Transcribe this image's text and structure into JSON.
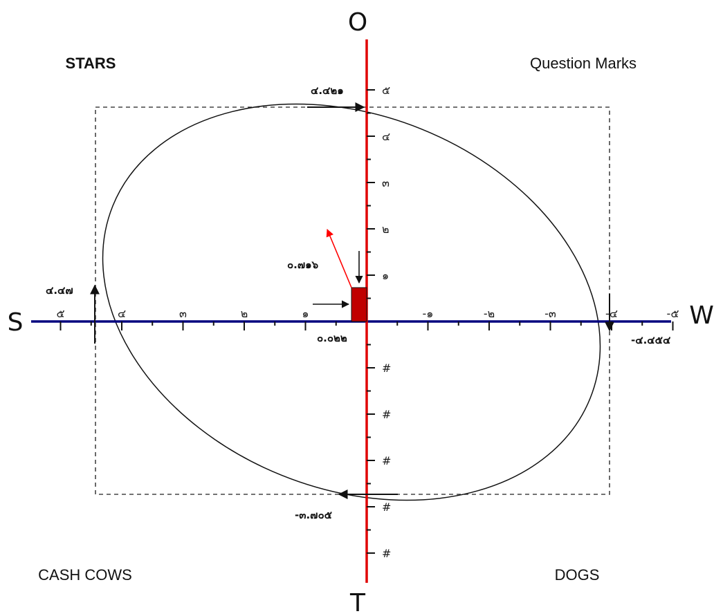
{
  "quadrants": {
    "top_left": "STARS",
    "top_right": "Question Marks",
    "bottom_left": "CASH COWS",
    "bottom_right": "DOGS"
  },
  "axes": {
    "top": "O",
    "bottom": "T",
    "left": "S",
    "right": "W",
    "horizontal_color": "#00007f",
    "vertical_color": "#e00000"
  },
  "x_tick_labels": [
    "๕",
    "๔",
    "๓",
    "๒",
    "๑",
    "-๑",
    "-๒",
    "-๓",
    "-๔",
    "-๕"
  ],
  "y_tick_labels_top": [
    "๕",
    "๔",
    "๓",
    "๒",
    "๑"
  ],
  "y_tick_labels_bottom": [
    "#",
    "#",
    "#",
    "#",
    "#"
  ],
  "values": {
    "o_top": "๔.๔๒๑",
    "s_left": "๔.๔๗",
    "w_right": "-๔.๔๕๔",
    "t_bottom": "-๓.๗๐๕",
    "vector_y": "๐.๗๑๖",
    "vector_x": "๐.๐๒๒"
  },
  "colors": {
    "vector_box": "#c00000",
    "vector_arrow": "#ff0000",
    "ellipse": "#111111",
    "frame": "#444444"
  }
}
